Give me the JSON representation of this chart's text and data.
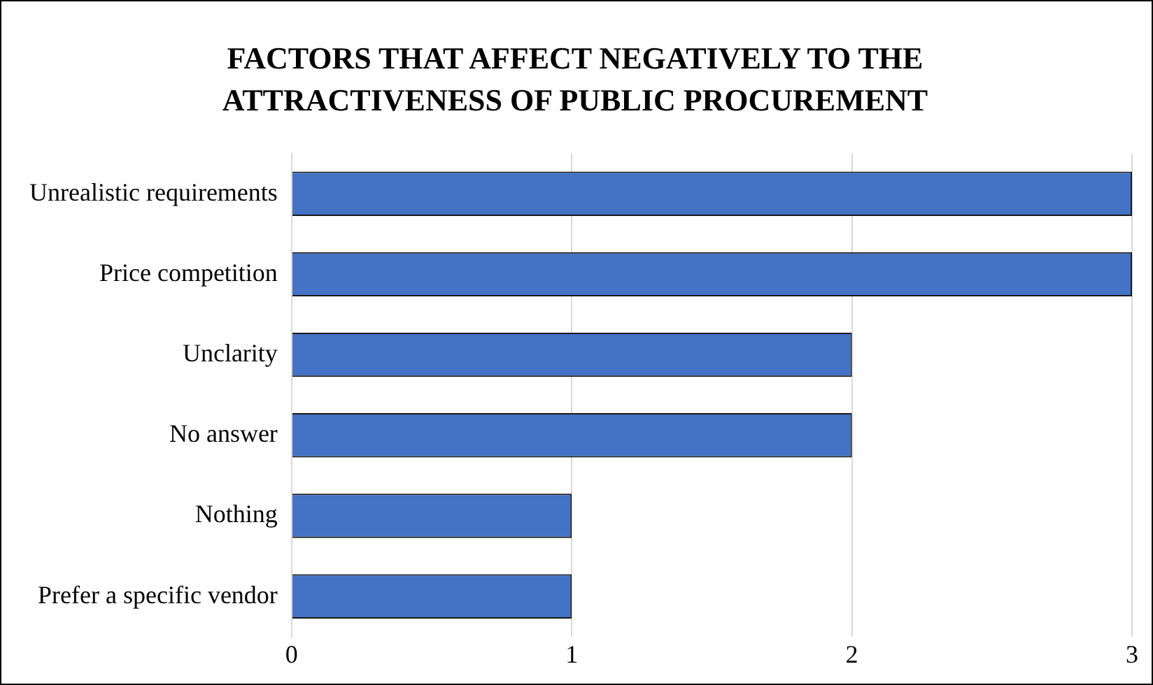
{
  "chart_data": {
    "type": "bar",
    "orientation": "horizontal",
    "title": "FACTORS THAT AFFECT NEGATIVELY TO THE ATTRACTIVENESS OF PUBLIC PROCUREMENT",
    "categories": [
      "Unrealistic requirements",
      "Price competition",
      "Unclarity",
      "No answer",
      "Nothing",
      "Prefer a specific vendor"
    ],
    "values": [
      3,
      3,
      2,
      2,
      1,
      1
    ],
    "color": "#4472c4",
    "xlim": [
      0,
      3
    ],
    "xticks": [
      0,
      1,
      2,
      3
    ],
    "grid": "x",
    "legend": false
  }
}
